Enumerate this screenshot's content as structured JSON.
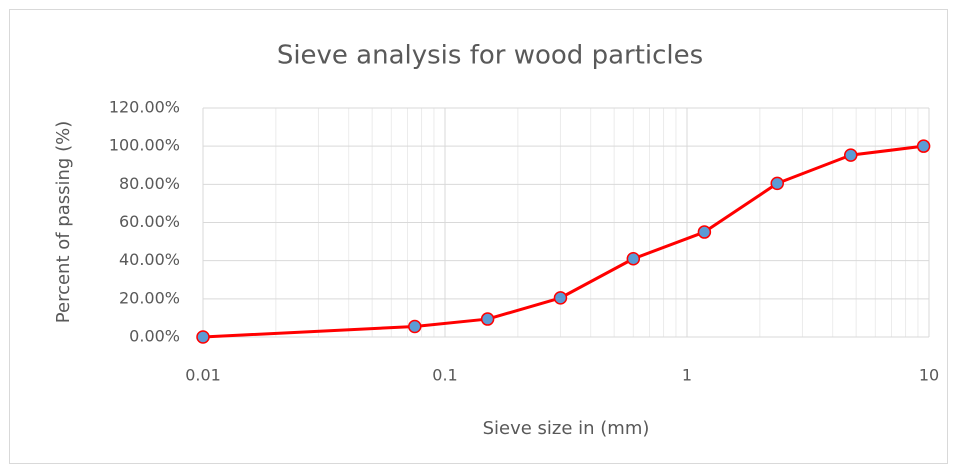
{
  "chart_data": {
    "type": "line",
    "title": "Sieve analysis for wood particles",
    "x_label": "Sieve size in (mm)",
    "y_label": "Percent of passing (%)",
    "x": [
      0.01,
      0.075,
      0.15,
      0.3,
      0.6,
      1.18,
      2.36,
      4.75,
      9.5
    ],
    "series": [
      {
        "color": "#ff0000",
        "marker_color": "#5b9bd5",
        "values": [
          0,
          5.5,
          9.4,
          20.5,
          41,
          55,
          80.5,
          95.3,
          100
        ]
      }
    ],
    "xlim": [
      0.01,
      10
    ],
    "xticks": [
      0.01,
      0.1,
      1,
      10
    ],
    "xlog": true,
    "ylim": [
      0,
      120
    ],
    "yticks": [
      {
        "value": 0,
        "label": "0.00%"
      },
      {
        "value": 20,
        "label": "20.00%"
      },
      {
        "value": 40,
        "label": "40.00%"
      },
      {
        "value": 60,
        "label": "60.00%"
      },
      {
        "value": 80,
        "label": "80.00%"
      },
      {
        "value": 100,
        "label": "100.00%"
      },
      {
        "value": 120,
        "label": "120.00%"
      }
    ],
    "grid": true,
    "minor_grid": true
  }
}
